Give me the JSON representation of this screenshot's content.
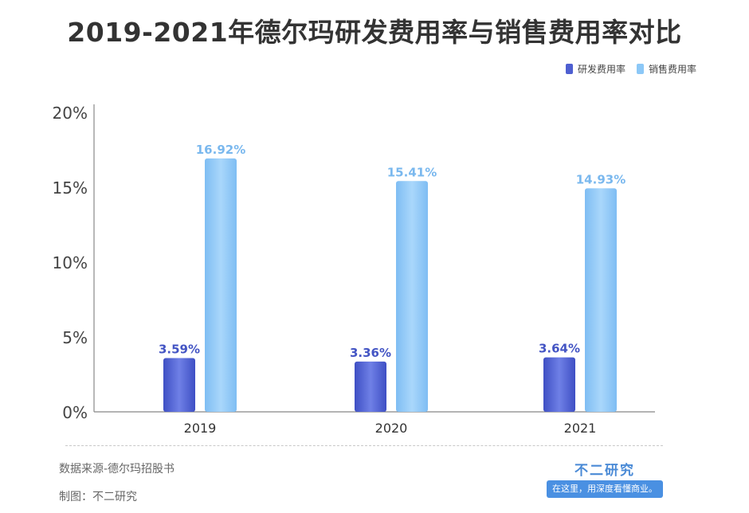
{
  "title": "2019-2021年德尔玛研发费用率与销售费用率对比",
  "legend": [
    {
      "label": "研发费用率",
      "color": "#4e5fd1"
    },
    {
      "label": "销售费用率",
      "color": "#8cc8f7"
    }
  ],
  "source_text": "数据来源-德尔玛招股书",
  "maker_text": "制图：不二研究",
  "brand": "不二研究",
  "slogan": "在这里，用深度看懂商业。",
  "chart_data": {
    "type": "bar",
    "title": "2019-2021年德尔玛研发费用率与销售费用率对比",
    "categories": [
      "2019",
      "2020",
      "2021"
    ],
    "series": [
      {
        "name": "研发费用率",
        "values": [
          3.59,
          3.36,
          3.64
        ],
        "labels": [
          "3.59%",
          "3.36%",
          "3.64%"
        ],
        "color": "#4e5fd1",
        "label_color": "#4455c4"
      },
      {
        "name": "销售费用率",
        "values": [
          16.92,
          15.41,
          14.93
        ],
        "labels": [
          "16.92%",
          "15.41%",
          "14.93%"
        ],
        "color": "#8cc8f7",
        "label_color": "#7ab8ee"
      }
    ],
    "ylim": [
      0,
      20
    ],
    "yticks": [
      0,
      5,
      10,
      15,
      20
    ],
    "ytick_labels": [
      "0%",
      "5%",
      "10%",
      "15%",
      "20%"
    ],
    "xlabel": "",
    "ylabel": "",
    "legend_position": "top-right",
    "grid": false
  }
}
